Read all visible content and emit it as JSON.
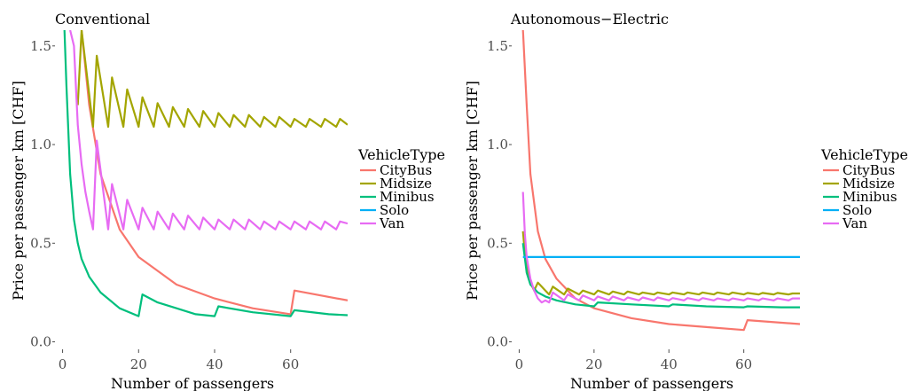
{
  "colors": {
    "CityBus": "#F8766D",
    "Midsize": "#A3A500",
    "Minibus": "#00BF7D",
    "Solo": "#00B0F6",
    "Van": "#E76BF3"
  },
  "chart_data": [
    {
      "type": "line",
      "title": "Conventional",
      "xlabel": "Number of passengers",
      "ylabel": "Price per passenger km [CHF]",
      "xlim": [
        -2,
        75
      ],
      "ylim": [
        -0.02,
        1.58
      ],
      "xticks": [
        "0",
        "20",
        "40",
        "60"
      ],
      "yticks": [
        "0.0",
        "0.5",
        "1.0",
        "1.5"
      ],
      "legend_title": "VehicleType",
      "legend": [
        "CityBus",
        "Midsize",
        "Minibus",
        "Solo",
        "Van"
      ],
      "legend_placement": "right",
      "grid": false,
      "series": [
        {
          "name": "CityBus",
          "x": [
            5,
            7,
            10,
            15,
            20,
            30,
            40,
            50,
            60,
            61,
            75
          ],
          "y": [
            1.58,
            1.2,
            0.85,
            0.57,
            0.43,
            0.29,
            0.22,
            0.17,
            0.14,
            0.26,
            0.21
          ]
        },
        {
          "name": "Midsize",
          "x": [
            4,
            5,
            8,
            9,
            12,
            13,
            16,
            17,
            20,
            21,
            24,
            25,
            28,
            29,
            32,
            33,
            36,
            37,
            40,
            41,
            44,
            45,
            48,
            49,
            52,
            53,
            56,
            57,
            60,
            61,
            64,
            65,
            68,
            69,
            72,
            73,
            75
          ],
          "y": [
            1.2,
            1.58,
            1.09,
            1.45,
            1.09,
            1.34,
            1.09,
            1.28,
            1.09,
            1.24,
            1.09,
            1.21,
            1.09,
            1.19,
            1.09,
            1.18,
            1.09,
            1.17,
            1.09,
            1.16,
            1.09,
            1.15,
            1.09,
            1.15,
            1.09,
            1.14,
            1.09,
            1.14,
            1.09,
            1.13,
            1.09,
            1.13,
            1.09,
            1.13,
            1.09,
            1.13,
            1.1
          ]
        },
        {
          "name": "Minibus",
          "x": [
            0.5,
            1,
            2,
            3,
            4,
            5,
            7,
            10,
            15,
            20,
            21,
            25,
            30,
            35,
            40,
            41,
            50,
            60,
            61,
            70,
            75
          ],
          "y": [
            1.58,
            1.3,
            0.85,
            0.62,
            0.5,
            0.42,
            0.33,
            0.25,
            0.17,
            0.13,
            0.24,
            0.2,
            0.17,
            0.14,
            0.13,
            0.18,
            0.15,
            0.13,
            0.16,
            0.14,
            0.135
          ]
        },
        {
          "name": "Van",
          "x": [
            2,
            3,
            4,
            5,
            6,
            7,
            8,
            9,
            12,
            13,
            16,
            17,
            20,
            21,
            24,
            25,
            28,
            29,
            32,
            33,
            36,
            37,
            40,
            41,
            44,
            45,
            48,
            49,
            52,
            53,
            56,
            57,
            60,
            61,
            64,
            65,
            68,
            69,
            72,
            73,
            75
          ],
          "y": [
            1.58,
            1.5,
            1.1,
            0.9,
            0.76,
            0.66,
            0.57,
            1.02,
            0.57,
            0.8,
            0.57,
            0.72,
            0.57,
            0.68,
            0.57,
            0.66,
            0.57,
            0.65,
            0.57,
            0.64,
            0.57,
            0.63,
            0.57,
            0.62,
            0.57,
            0.62,
            0.57,
            0.62,
            0.57,
            0.61,
            0.57,
            0.61,
            0.57,
            0.61,
            0.57,
            0.61,
            0.57,
            0.61,
            0.57,
            0.61,
            0.6
          ]
        }
      ]
    },
    {
      "type": "line",
      "title": "Autonomous−Electric",
      "xlabel": "Number of passengers",
      "ylabel": "Price per passenger km [CHF]",
      "xlim": [
        -2,
        75
      ],
      "ylim": [
        -0.02,
        1.58
      ],
      "xticks": [
        "0",
        "20",
        "40",
        "60"
      ],
      "yticks": [
        "0.0",
        "0.5",
        "1.0",
        "1.5"
      ],
      "legend_title": "VehicleType",
      "legend": [
        "CityBus",
        "Midsize",
        "Minibus",
        "Solo",
        "Van"
      ],
      "legend_placement": "right",
      "grid": false,
      "series": [
        {
          "name": "CityBus",
          "x": [
            1,
            2,
            3,
            5,
            7,
            10,
            15,
            20,
            30,
            40,
            50,
            60,
            61,
            75
          ],
          "y": [
            1.58,
            1.2,
            0.85,
            0.56,
            0.42,
            0.32,
            0.22,
            0.17,
            0.12,
            0.09,
            0.075,
            0.06,
            0.11,
            0.09
          ]
        },
        {
          "name": "Midsize",
          "x": [
            1,
            1.5,
            2,
            3,
            4,
            5,
            6,
            7,
            8,
            9,
            12,
            13,
            16,
            17,
            20,
            21,
            24,
            25,
            28,
            29,
            32,
            33,
            36,
            37,
            40,
            41,
            44,
            45,
            48,
            49,
            52,
            53,
            56,
            57,
            60,
            61,
            64,
            65,
            68,
            69,
            72,
            73,
            75
          ],
          "y": [
            0.56,
            0.45,
            0.38,
            0.3,
            0.26,
            0.3,
            0.28,
            0.26,
            0.24,
            0.28,
            0.24,
            0.27,
            0.24,
            0.26,
            0.24,
            0.26,
            0.24,
            0.255,
            0.24,
            0.255,
            0.24,
            0.25,
            0.24,
            0.25,
            0.24,
            0.25,
            0.24,
            0.25,
            0.24,
            0.25,
            0.24,
            0.25,
            0.24,
            0.25,
            0.24,
            0.248,
            0.24,
            0.248,
            0.24,
            0.248,
            0.24,
            0.245,
            0.245
          ]
        },
        {
          "name": "Minibus",
          "x": [
            1,
            2,
            3,
            5,
            7,
            10,
            15,
            20,
            21,
            30,
            40,
            41,
            50,
            60,
            61,
            70,
            75
          ],
          "y": [
            0.5,
            0.35,
            0.29,
            0.25,
            0.23,
            0.21,
            0.19,
            0.18,
            0.2,
            0.19,
            0.18,
            0.19,
            0.18,
            0.175,
            0.18,
            0.175,
            0.175
          ]
        },
        {
          "name": "Solo",
          "x": [
            1,
            75
          ],
          "y": [
            0.43,
            0.43
          ]
        },
        {
          "name": "Van",
          "x": [
            1,
            1.5,
            2,
            3,
            4,
            5,
            6,
            7,
            8,
            9,
            12,
            13,
            16,
            17,
            20,
            21,
            24,
            25,
            28,
            29,
            32,
            33,
            36,
            37,
            40,
            41,
            44,
            45,
            48,
            49,
            52,
            53,
            56,
            57,
            60,
            61,
            64,
            65,
            68,
            69,
            72,
            73,
            75
          ],
          "y": [
            0.76,
            0.55,
            0.43,
            0.32,
            0.26,
            0.22,
            0.2,
            0.21,
            0.2,
            0.25,
            0.21,
            0.24,
            0.21,
            0.235,
            0.21,
            0.23,
            0.21,
            0.23,
            0.21,
            0.225,
            0.21,
            0.225,
            0.21,
            0.225,
            0.21,
            0.222,
            0.21,
            0.222,
            0.21,
            0.222,
            0.21,
            0.22,
            0.21,
            0.22,
            0.21,
            0.22,
            0.21,
            0.22,
            0.21,
            0.22,
            0.21,
            0.22,
            0.22
          ]
        }
      ]
    }
  ]
}
